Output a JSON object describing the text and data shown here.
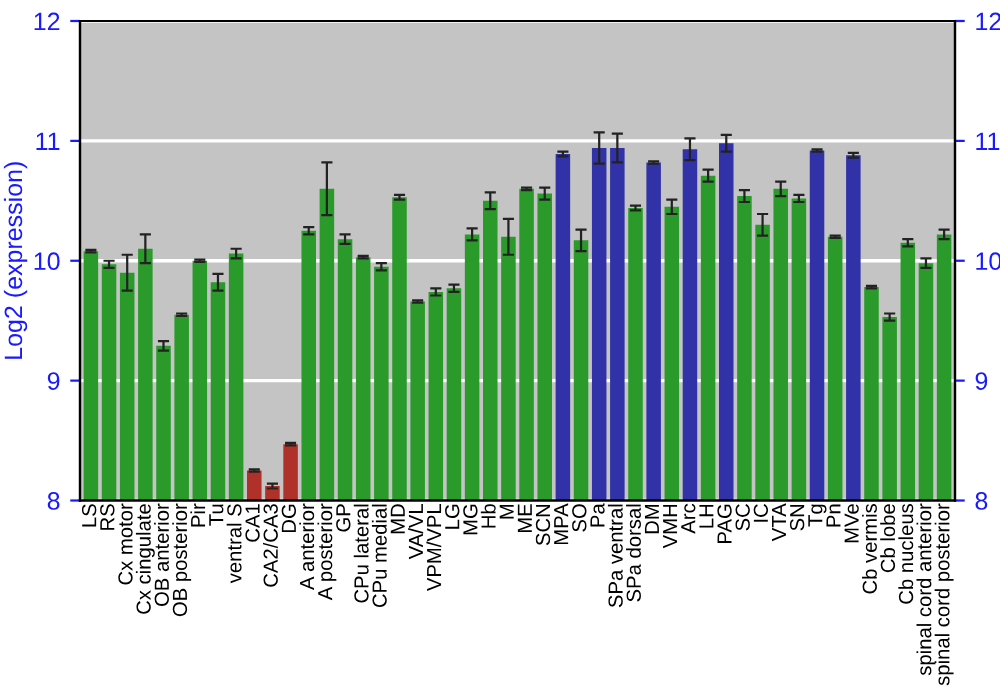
{
  "chart_data": {
    "type": "bar",
    "ylabel": "Log2 (expression)",
    "categories": [
      "LS",
      "RS",
      "Cx motor",
      "Cx cingulate",
      "OB anterior",
      "OB posterior",
      "Pir",
      "Tu",
      "ventral S",
      "CA1",
      "CA2/CA3",
      "DG",
      "A anterior",
      "A posterior",
      "GP",
      "CPu lateral",
      "CPu medial",
      "MD",
      "VA/VL",
      "VPM/VPL",
      "LG",
      "MG",
      "Hb",
      "M",
      "ME",
      "SCN",
      "MPA",
      "SO",
      "Pa",
      "SPa ventral",
      "SPa dorsal",
      "DM",
      "VMH",
      "Arc",
      "LH",
      "PAG",
      "SC",
      "IC",
      "VTA",
      "SN",
      "Tg",
      "Pn",
      "MVe",
      "Cb vermis",
      "Cb lobe",
      "Cb nucleus",
      "spinal cord anterior",
      "spinal cord posterior"
    ],
    "values": [
      10.08,
      9.97,
      9.9,
      10.1,
      9.29,
      9.55,
      10.0,
      9.82,
      10.06,
      8.25,
      8.12,
      8.47,
      10.25,
      10.6,
      10.18,
      10.03,
      9.95,
      10.53,
      9.66,
      9.74,
      9.77,
      10.22,
      10.5,
      10.2,
      10.6,
      10.56,
      10.89,
      10.17,
      10.94,
      10.94,
      10.44,
      10.82,
      10.45,
      10.93,
      10.71,
      10.98,
      10.54,
      10.3,
      10.6,
      10.52,
      10.92,
      10.2,
      10.88,
      9.78,
      9.53,
      10.15,
      9.98,
      10.22
    ],
    "errors": [
      0.01,
      0.03,
      0.15,
      0.12,
      0.04,
      0.01,
      0.01,
      0.07,
      0.04,
      0.01,
      0.02,
      0.01,
      0.03,
      0.22,
      0.04,
      0.01,
      0.03,
      0.02,
      0.01,
      0.03,
      0.03,
      0.05,
      0.07,
      0.15,
      0.01,
      0.05,
      0.02,
      0.09,
      0.13,
      0.12,
      0.02,
      0.01,
      0.06,
      0.09,
      0.05,
      0.07,
      0.05,
      0.09,
      0.06,
      0.03,
      0.01,
      0.01,
      0.02,
      0.01,
      0.03,
      0.03,
      0.04,
      0.04
    ],
    "colors": [
      "#2a9a2a",
      "#2a9a2a",
      "#2a9a2a",
      "#2a9a2a",
      "#2a9a2a",
      "#2a9a2a",
      "#2a9a2a",
      "#2a9a2a",
      "#2a9a2a",
      "#b0302a",
      "#b0302a",
      "#b0302a",
      "#2a9a2a",
      "#2a9a2a",
      "#2a9a2a",
      "#2a9a2a",
      "#2a9a2a",
      "#2a9a2a",
      "#2a9a2a",
      "#2a9a2a",
      "#2a9a2a",
      "#2a9a2a",
      "#2a9a2a",
      "#2a9a2a",
      "#2a9a2a",
      "#2a9a2a",
      "#3232a8",
      "#2a9a2a",
      "#3232a8",
      "#3232a8",
      "#2a9a2a",
      "#3232a8",
      "#2a9a2a",
      "#3232a8",
      "#2a9a2a",
      "#3232a8",
      "#2a9a2a",
      "#2a9a2a",
      "#2a9a2a",
      "#2a9a2a",
      "#3232a8",
      "#2a9a2a",
      "#3232a8",
      "#2a9a2a",
      "#2a9a2a",
      "#2a9a2a",
      "#2a9a2a",
      "#2a9a2a"
    ],
    "ylim": [
      8,
      12
    ],
    "yticks": [
      8,
      9,
      10,
      11,
      12
    ],
    "y2lim": [
      8,
      12
    ],
    "y2ticks": [
      8,
      9,
      10,
      11,
      12
    ],
    "grid": "y"
  }
}
